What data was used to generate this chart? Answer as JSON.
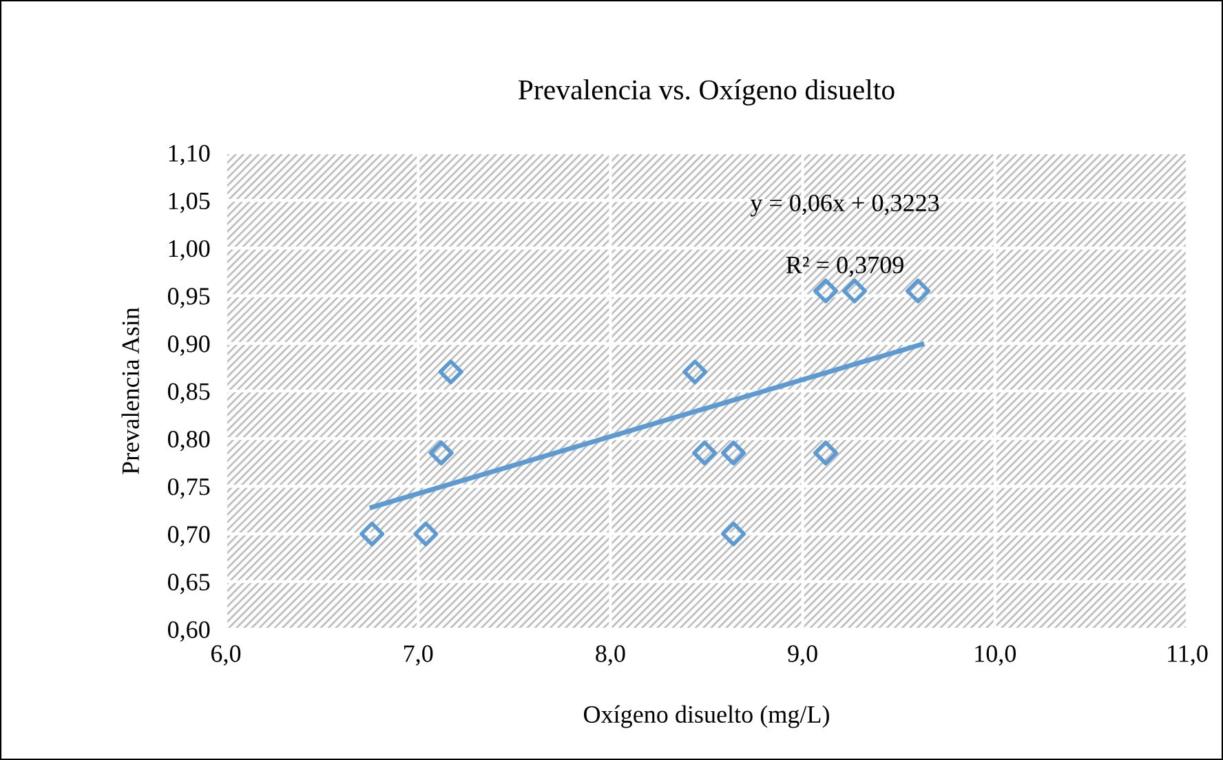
{
  "chart_data": {
    "type": "scatter",
    "title": "Prevalencia vs. Oxígeno disuelto",
    "xlabel": "Oxígeno disuelto (mg/L)",
    "ylabel": "Prevalencia Asin",
    "annotations": [
      "y = 0,06x + 0,3223",
      "R² = 0,3709"
    ],
    "series": [
      {
        "color": "#5b9bd5",
        "marker": "diamond",
        "x": [
          6.76,
          7.04,
          7.12,
          7.17,
          8.44,
          8.49,
          8.64,
          8.64,
          9.12,
          9.27,
          9.6,
          9.12
        ],
        "values": [
          0.7,
          0.7,
          0.785,
          0.87,
          0.87,
          0.785,
          0.785,
          0.7,
          0.955,
          0.955,
          0.955,
          0.785
        ]
      },
      {
        "type": "line",
        "color": "#5b9bd5",
        "marker": "none",
        "line_style": "solid",
        "x": [
          6.76,
          9.62
        ],
        "values": [
          0.728,
          0.899
        ]
      }
    ],
    "xlim": [
      6.0,
      11.0
    ],
    "xticks": [
      {
        "value": 6.0,
        "label": "6,0"
      },
      {
        "value": 7.0,
        "label": "7,0"
      },
      {
        "value": 8.0,
        "label": "8,0"
      },
      {
        "value": 9.0,
        "label": "9,0"
      },
      {
        "value": 10.0,
        "label": "10,0"
      },
      {
        "value": 11.0,
        "label": "11,0"
      }
    ],
    "ylim": [
      0.6,
      1.1
    ],
    "yticks": [
      {
        "value": 0.6,
        "label": "0,60"
      },
      {
        "value": 0.65,
        "label": "0,65"
      },
      {
        "value": 0.7,
        "label": "0,70"
      },
      {
        "value": 0.75,
        "label": "0,75"
      },
      {
        "value": 0.8,
        "label": "0,80"
      },
      {
        "value": 0.85,
        "label": "0,85"
      },
      {
        "value": 0.9,
        "label": "0,90"
      },
      {
        "value": 0.95,
        "label": "0,95"
      },
      {
        "value": 1.0,
        "label": "1,00"
      },
      {
        "value": 1.05,
        "label": "1,05"
      },
      {
        "value": 1.1,
        "label": "1,10"
      }
    ],
    "grid": true,
    "legend": false
  }
}
